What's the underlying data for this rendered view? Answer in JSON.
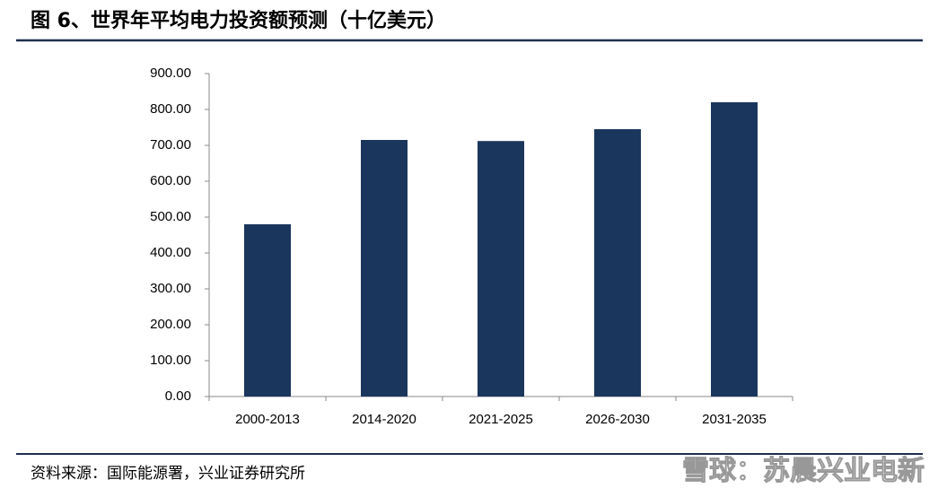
{
  "chart_data": {
    "type": "bar",
    "title": "图 6、世界年平均电力投资额预测（十亿美元）",
    "source": "资料来源：国际能源署，兴业证券研究所",
    "categories": [
      "2000-2013",
      "2014-2020",
      "2021-2025",
      "2026-2030",
      "2031-2035"
    ],
    "values": [
      480,
      715,
      712,
      745,
      820
    ],
    "color": "#1b365d",
    "ylim": [
      0,
      900
    ],
    "yticks": [
      {
        "value": 0,
        "label": "0.00"
      },
      {
        "value": 100,
        "label": "100.00"
      },
      {
        "value": 200,
        "label": "200.00"
      },
      {
        "value": 300,
        "label": "300.00"
      },
      {
        "value": 400,
        "label": "400.00"
      },
      {
        "value": 500,
        "label": "500.00"
      },
      {
        "value": 600,
        "label": "600.00"
      },
      {
        "value": 700,
        "label": "700.00"
      },
      {
        "value": 800,
        "label": "800.00"
      },
      {
        "value": 900,
        "label": "900.00"
      }
    ],
    "grid": false
  },
  "watermark": "雪球：苏晨兴业电新"
}
